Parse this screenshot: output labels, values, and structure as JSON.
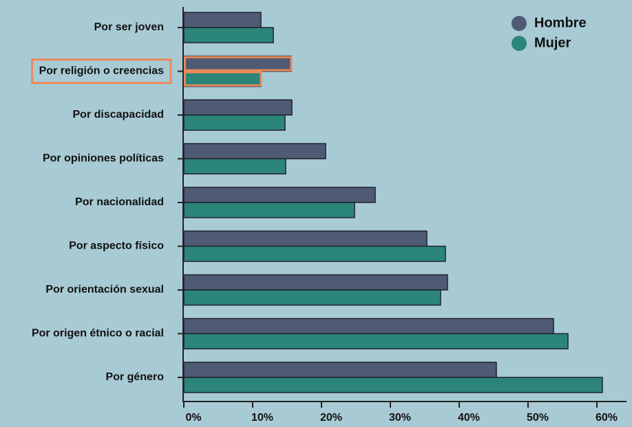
{
  "chart_data": {
    "type": "bar",
    "orientation": "horizontal",
    "categories": [
      "Por ser joven",
      "Por religión o creencias",
      "Por discapacidad",
      "Por opiniones políticas",
      "Por nacionalidad",
      "Por aspecto físico",
      "Por orientación sexual",
      "Por origen étnico o racial",
      "Por género"
    ],
    "series": [
      {
        "name": "Hombre",
        "color": "#4f5a74",
        "values": [
          11.2,
          15.6,
          15.7,
          20.6,
          27.8,
          35.3,
          38.3,
          53.7,
          45.4
        ]
      },
      {
        "name": "Mujer",
        "color": "#2b8578",
        "values": [
          13.0,
          11.2,
          14.7,
          14.8,
          24.8,
          38.0,
          37.3,
          55.8,
          60.8
        ]
      }
    ],
    "x_ticks": [
      "0%",
      "10%",
      "20%",
      "30%",
      "40%",
      "50%",
      "60%"
    ],
    "xlim": [
      0,
      64
    ],
    "title": "",
    "xlabel": "",
    "ylabel": "",
    "legend_position": "top-right",
    "highlighted_category": "Por religión o creencias",
    "highlight_color": "#ea8a5a",
    "grid": false
  }
}
